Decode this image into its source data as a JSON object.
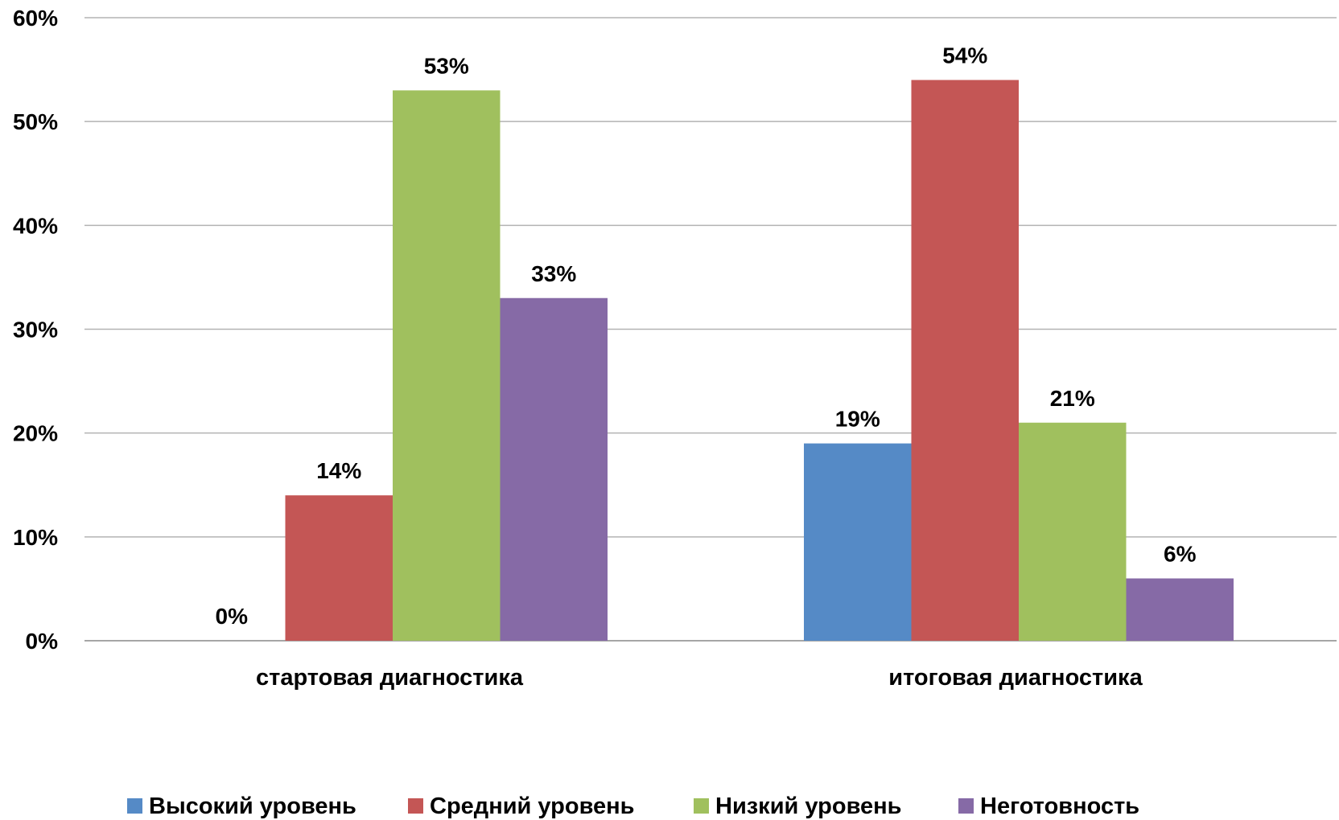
{
  "chart_data": {
    "type": "bar",
    "categories": [
      "стартовая диагностика",
      "итоговая диагностика"
    ],
    "series": [
      {
        "name": "Высокий уровень",
        "color": "#558ac6",
        "values": [
          0,
          19
        ]
      },
      {
        "name": "Средний уровень",
        "color": "#c45655",
        "values": [
          14,
          54
        ]
      },
      {
        "name": "Низкий уровень",
        "color": "#a0c05e",
        "values": [
          53,
          21
        ]
      },
      {
        "name": "Неготовность",
        "color": "#866aa6",
        "values": [
          33,
          6
        ]
      }
    ],
    "data_labels": [
      [
        "0%",
        "19%"
      ],
      [
        "14%",
        "54%"
      ],
      [
        "53%",
        "21%"
      ],
      [
        "33%",
        "6%"
      ]
    ],
    "y_ticks": [
      "0%",
      "10%",
      "20%",
      "30%",
      "40%",
      "50%",
      "60%"
    ],
    "ylim": [
      0,
      60
    ],
    "grid": true,
    "legend_position": "bottom",
    "title": "",
    "xlabel": "",
    "ylabel": ""
  }
}
